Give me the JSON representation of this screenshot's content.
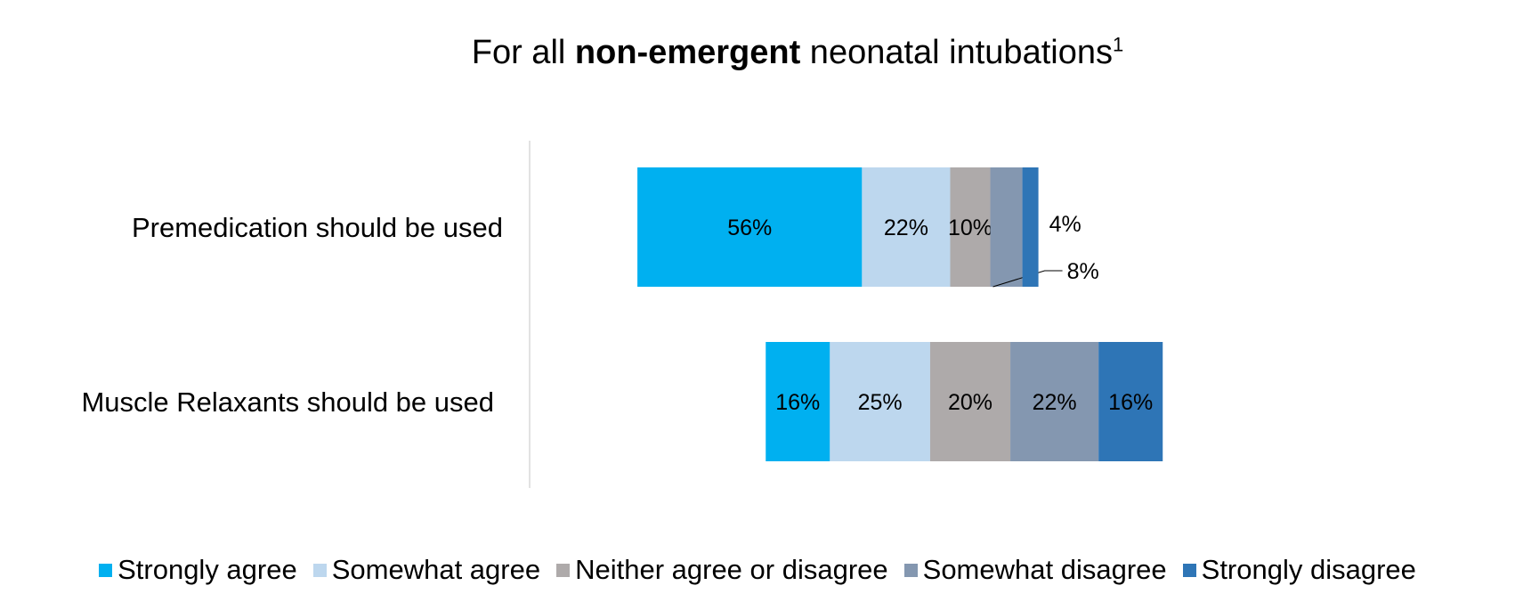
{
  "chart_data": {
    "type": "bar",
    "orientation": "horizontal",
    "stacked": true,
    "title": {
      "prefix": "For all ",
      "bold": "non-emergent",
      "suffix": " neonatal intubations",
      "superscript": "1"
    },
    "categories": [
      "Premedication should be used",
      "Muscle Relaxants should be used"
    ],
    "series": [
      {
        "name": "Strongly agree",
        "color": "#00b0f0",
        "values": [
          56,
          16
        ],
        "labels": [
          "56%",
          "16%"
        ]
      },
      {
        "name": "Somewhat agree",
        "color": "#bdd7ee",
        "values": [
          22,
          25
        ],
        "labels": [
          "22%",
          "25%"
        ]
      },
      {
        "name": "Neither agree or disagree",
        "color": "#aeaaaa",
        "values": [
          10,
          20
        ],
        "labels": [
          "10%",
          "20%"
        ]
      },
      {
        "name": "Somewhat disagree",
        "color": "#8497b0",
        "values": [
          8,
          22
        ],
        "labels": [
          "8%",
          "22%"
        ]
      },
      {
        "name": "Strongly disagree",
        "color": "#2e75b6",
        "values": [
          4,
          16
        ],
        "labels": [
          "4%",
          "16%"
        ]
      }
    ],
    "centering": "diverging around the Neither agree or disagree segment",
    "legend_position": "bottom",
    "grid": false
  }
}
